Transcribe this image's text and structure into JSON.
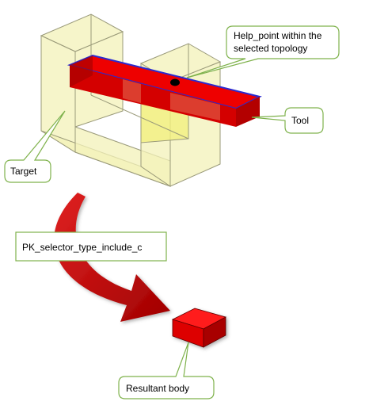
{
  "labels": {
    "help_point_line1": "Help_point within the",
    "help_point_line2": "selected topology",
    "tool": "Tool",
    "target": "Target",
    "selector": "PK_selector_type_include_c",
    "result": "Resultant body"
  },
  "colors": {
    "target_fill": "#f3f2b8",
    "target_stroke": "#9a9a7a",
    "tool_red": "#ee0000",
    "tool_dark": "#b30000",
    "tool_edge": "#2a2ad0",
    "arrow_red": "#cc0000",
    "callout_border": "#7fb24c"
  }
}
